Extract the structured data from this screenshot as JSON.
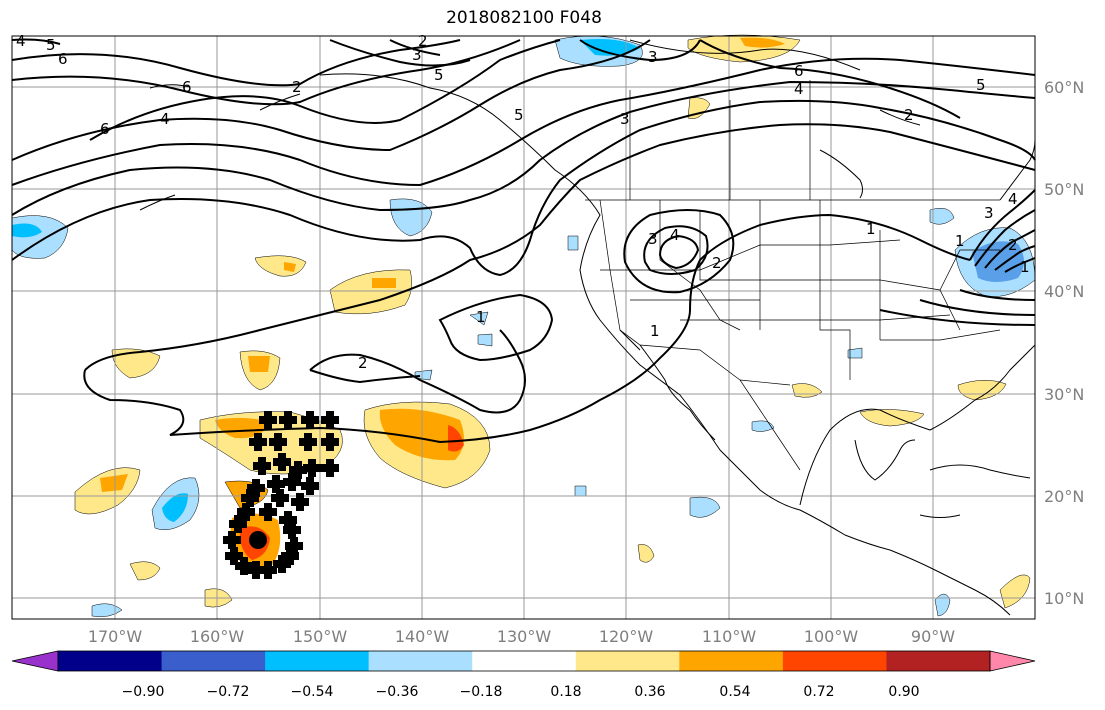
{
  "title": "2018082100 F048",
  "lat_labels": [
    "60°N",
    "50°N",
    "40°N",
    "30°N",
    "20°N",
    "10°N"
  ],
  "lon_labels": [
    "170°W",
    "160°W",
    "150°W",
    "140°W",
    "130°W",
    "120°W",
    "110°W",
    "100°W",
    "90°W"
  ],
  "contour_labels": [
    "5",
    "4",
    "6",
    "6",
    "6",
    "4",
    "5",
    "3",
    "2",
    "2",
    "5",
    "3",
    "3",
    "6",
    "4",
    "5",
    "2",
    "3",
    "4",
    "2",
    "1",
    "1",
    "1",
    "1",
    "2",
    "4",
    "3",
    "2",
    "1"
  ],
  "colorbar": {
    "ticks": [
      "−0.90",
      "−0.72",
      "−0.54",
      "−0.36",
      "−0.18",
      "0.18",
      "0.36",
      "0.54",
      "0.72",
      "0.90"
    ],
    "colors": [
      "#9932cc",
      "#00008b",
      "#3a5fcd",
      "#00bfff",
      "#aadfff",
      "#ffffff",
      "#ffe88a",
      "#ffa500",
      "#ff4500",
      "#b22222",
      "#ff88aa"
    ]
  }
}
